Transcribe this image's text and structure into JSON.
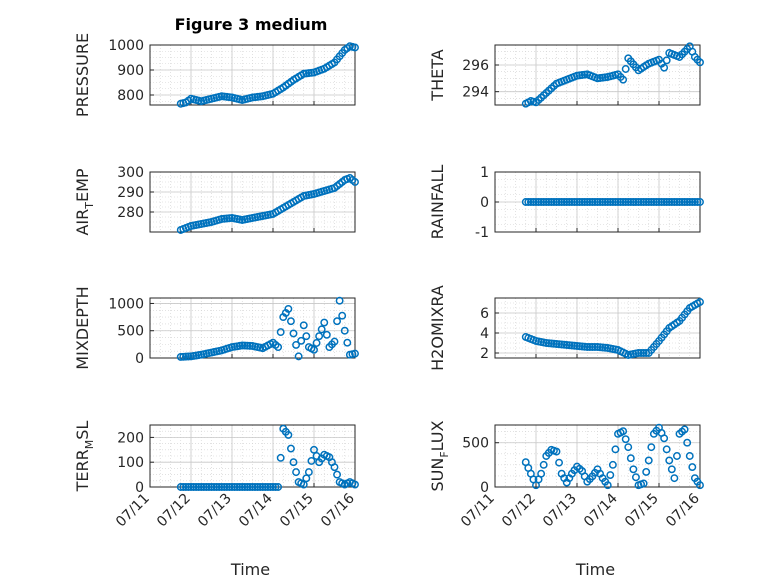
{
  "figure_title": "Figure 3 medium",
  "marker_color": "#0072BD",
  "axis_color": "#262626",
  "grid": "on (major + minor dotted)",
  "chart_data": [
    {
      "type": "scatter",
      "title": "Figure 3 medium",
      "ylabel": "PRESSURE",
      "xlabel": "",
      "ylim": [
        760,
        1000
      ],
      "yticks": [
        800,
        900,
        1000
      ],
      "xlim": [
        "07/11",
        "07/16"
      ],
      "xticks": [
        "07/11",
        "07/12",
        "07/13",
        "07/14",
        "07/15",
        "07/16"
      ],
      "x": [
        "07/11 18:00",
        "07/11 21:00",
        "07/12 00:00",
        "07/12 03:00",
        "07/12 06:00",
        "07/12 12:00",
        "07/12 18:00",
        "07/13 00:00",
        "07/13 06:00",
        "07/13 12:00",
        "07/13 18:00",
        "07/14 00:00",
        "07/14 06:00",
        "07/14 12:00",
        "07/14 18:00",
        "07/15 00:00",
        "07/15 06:00",
        "07/15 12:00",
        "07/15 18:00",
        "07/15 21:00",
        "07/16 00:00"
      ],
      "y": [
        765,
        770,
        785,
        780,
        775,
        785,
        795,
        790,
        780,
        790,
        795,
        805,
        830,
        860,
        885,
        890,
        905,
        930,
        980,
        995,
        990
      ]
    },
    {
      "type": "scatter",
      "ylabel": "THETA",
      "xlabel": "",
      "ylim": [
        293,
        297.5
      ],
      "yticks": [
        294,
        296
      ],
      "xlim": [
        "07/11",
        "07/16"
      ],
      "xticks": [
        "07/11",
        "07/12",
        "07/13",
        "07/14",
        "07/15",
        "07/16"
      ],
      "x": [
        "07/11 18:00",
        "07/11 21:00",
        "07/12 00:00",
        "07/12 06:00",
        "07/12 12:00",
        "07/12 18:00",
        "07/13 00:00",
        "07/13 06:00",
        "07/13 12:00",
        "07/13 18:00",
        "07/14 00:00",
        "07/14 03:00",
        "07/14 06:00",
        "07/14 12:00",
        "07/14 18:00",
        "07/15 00:00",
        "07/15 03:00",
        "07/15 06:00",
        "07/15 12:00",
        "07/15 18:00",
        "07/15 21:00",
        "07/16 00:00"
      ],
      "y": [
        293.1,
        293.3,
        293.2,
        293.9,
        294.6,
        294.9,
        295.2,
        295.3,
        295.0,
        295.1,
        295.3,
        294.9,
        296.5,
        295.6,
        296.1,
        296.4,
        295.8,
        296.9,
        296.6,
        297.4,
        296.6,
        296.2
      ]
    },
    {
      "type": "scatter",
      "ylabel": "AIR_TEMP",
      "ylabel_main": "AIR",
      "ylabel_sub": "T",
      "ylabel_rest": "EMP",
      "xlabel": "",
      "ylim": [
        270,
        300
      ],
      "yticks": [
        280,
        290,
        300
      ],
      "xlim": [
        "07/11",
        "07/16"
      ],
      "xticks": [
        "07/11",
        "07/12",
        "07/13",
        "07/14",
        "07/15",
        "07/16"
      ],
      "x": [
        "07/11 18:00",
        "07/12 00:00",
        "07/12 06:00",
        "07/12 12:00",
        "07/12 18:00",
        "07/13 00:00",
        "07/13 06:00",
        "07/13 12:00",
        "07/13 18:00",
        "07/14 00:00",
        "07/14 06:00",
        "07/14 12:00",
        "07/14 18:00",
        "07/15 00:00",
        "07/15 06:00",
        "07/15 12:00",
        "07/15 18:00",
        "07/15 21:00",
        "07/16 00:00"
      ],
      "y": [
        271,
        273,
        274,
        275,
        276.5,
        277,
        276,
        277,
        278,
        279,
        282,
        285,
        288,
        289,
        290.5,
        292,
        296,
        297,
        295
      ]
    },
    {
      "type": "scatter",
      "ylabel": "RAINFALL",
      "xlabel": "",
      "ylim": [
        -1,
        1
      ],
      "yticks": [
        -1,
        0,
        1
      ],
      "xlim": [
        "07/11",
        "07/16"
      ],
      "xticks": [
        "07/11",
        "07/12",
        "07/13",
        "07/14",
        "07/15",
        "07/16"
      ],
      "x": [
        "07/11 18:00",
        "07/12 00:00",
        "07/12 06:00",
        "07/12 12:00",
        "07/12 18:00",
        "07/13 00:00",
        "07/13 06:00",
        "07/13 12:00",
        "07/13 18:00",
        "07/14 00:00",
        "07/14 06:00",
        "07/14 12:00",
        "07/14 18:00",
        "07/15 00:00",
        "07/15 06:00",
        "07/15 12:00",
        "07/15 18:00",
        "07/16 00:00"
      ],
      "y": [
        0,
        0,
        0,
        0,
        0,
        0,
        0,
        0,
        0,
        0,
        0,
        0,
        0,
        0,
        0,
        0,
        0,
        0
      ]
    },
    {
      "type": "scatter",
      "ylabel": "MIXDEPTH",
      "xlabel": "",
      "ylim": [
        0,
        1100
      ],
      "yticks": [
        0,
        500,
        1000
      ],
      "xlim": [
        "07/11",
        "07/16"
      ],
      "xticks": [
        "07/11",
        "07/12",
        "07/13",
        "07/14",
        "07/15",
        "07/16"
      ],
      "x": [
        "07/11 18:00",
        "07/12 00:00",
        "07/12 06:00",
        "07/12 12:00",
        "07/12 18:00",
        "07/13 00:00",
        "07/13 06:00",
        "07/13 12:00",
        "07/13 18:00",
        "07/14 00:00",
        "07/14 03:00",
        "07/14 06:00",
        "07/14 09:00",
        "07/14 12:00",
        "07/14 15:00",
        "07/14 18:00",
        "07/14 21:00",
        "07/15 00:00",
        "07/15 03:00",
        "07/15 06:00",
        "07/15 09:00",
        "07/15 12:00",
        "07/15 15:00",
        "07/15 18:00",
        "07/15 21:00",
        "07/16 00:00"
      ],
      "y": [
        20,
        30,
        60,
        100,
        140,
        200,
        230,
        220,
        180,
        280,
        200,
        750,
        900,
        450,
        30,
        600,
        200,
        150,
        400,
        650,
        200,
        300,
        1050,
        500,
        60,
        80
      ]
    },
    {
      "type": "scatter",
      "ylabel": "H2OMIXRA",
      "xlabel": "",
      "ylim": [
        1.5,
        7.5
      ],
      "yticks": [
        2,
        4,
        6
      ],
      "xlim": [
        "07/11",
        "07/16"
      ],
      "xticks": [
        "07/11",
        "07/12",
        "07/13",
        "07/14",
        "07/15",
        "07/16"
      ],
      "x": [
        "07/11 18:00",
        "07/12 00:00",
        "07/12 06:00",
        "07/12 12:00",
        "07/12 18:00",
        "07/13 00:00",
        "07/13 06:00",
        "07/13 12:00",
        "07/13 18:00",
        "07/14 00:00",
        "07/14 06:00",
        "07/14 12:00",
        "07/14 18:00",
        "07/15 00:00",
        "07/15 06:00",
        "07/15 12:00",
        "07/15 18:00",
        "07/16 00:00"
      ],
      "y": [
        3.6,
        3.2,
        3.0,
        2.9,
        2.8,
        2.7,
        2.6,
        2.6,
        2.5,
        2.3,
        1.8,
        2.0,
        2.0,
        3.2,
        4.5,
        5.2,
        6.5,
        7.1
      ]
    },
    {
      "type": "scatter",
      "ylabel": "TERR_MSL",
      "ylabel_main": "TERR",
      "ylabel_sub": "M",
      "ylabel_rest": "SL",
      "xlabel": "Time",
      "ylim": [
        0,
        250
      ],
      "yticks": [
        0,
        100,
        200
      ],
      "xlim": [
        "07/11",
        "07/16"
      ],
      "xticks": [
        "07/11",
        "07/12",
        "07/13",
        "07/14",
        "07/15",
        "07/16"
      ],
      "x": [
        "07/11 18:00",
        "07/12 00:00",
        "07/12 06:00",
        "07/12 12:00",
        "07/12 18:00",
        "07/13 00:00",
        "07/13 06:00",
        "07/13 12:00",
        "07/13 18:00",
        "07/14 00:00",
        "07/14 03:00",
        "07/14 06:00",
        "07/14 09:00",
        "07/14 12:00",
        "07/14 15:00",
        "07/14 18:00",
        "07/14 21:00",
        "07/15 00:00",
        "07/15 03:00",
        "07/15 06:00",
        "07/15 09:00",
        "07/15 12:00",
        "07/15 15:00",
        "07/15 18:00",
        "07/15 21:00",
        "07/16 00:00"
      ],
      "y": [
        0,
        0,
        0,
        0,
        0,
        0,
        0,
        0,
        0,
        0,
        0,
        235,
        210,
        100,
        20,
        10,
        60,
        150,
        100,
        130,
        120,
        80,
        20,
        10,
        20,
        10
      ]
    },
    {
      "type": "scatter",
      "ylabel": "SUN_FLUX",
      "ylabel_main": "SUN",
      "ylabel_sub": "F",
      "ylabel_rest": "LUX",
      "xlabel": "Time",
      "ylim": [
        0,
        700
      ],
      "yticks": [
        0,
        500
      ],
      "xlim": [
        "07/11",
        "07/16"
      ],
      "xticks": [
        "07/11",
        "07/12",
        "07/13",
        "07/14",
        "07/15",
        "07/16"
      ],
      "x": [
        "07/11 18:00",
        "07/11 21:00",
        "07/12 00:00",
        "07/12 03:00",
        "07/12 06:00",
        "07/12 09:00",
        "07/12 12:00",
        "07/12 15:00",
        "07/12 18:00",
        "07/12 21:00",
        "07/13 00:00",
        "07/13 03:00",
        "07/13 06:00",
        "07/13 09:00",
        "07/13 12:00",
        "07/13 15:00",
        "07/13 18:00",
        "07/13 21:00",
        "07/14 00:00",
        "07/14 03:00",
        "07/14 06:00",
        "07/14 09:00",
        "07/14 12:00",
        "07/14 15:00",
        "07/14 18:00",
        "07/14 21:00",
        "07/15 00:00",
        "07/15 03:00",
        "07/15 06:00",
        "07/15 09:00",
        "07/15 12:00",
        "07/15 15:00",
        "07/15 18:00",
        "07/15 21:00",
        "07/16 00:00"
      ],
      "y": [
        280,
        150,
        20,
        150,
        350,
        420,
        400,
        150,
        50,
        150,
        230,
        180,
        60,
        120,
        200,
        100,
        20,
        250,
        600,
        630,
        450,
        200,
        20,
        40,
        300,
        600,
        670,
        550,
        300,
        100,
        600,
        650,
        350,
        100,
        20
      ]
    }
  ]
}
